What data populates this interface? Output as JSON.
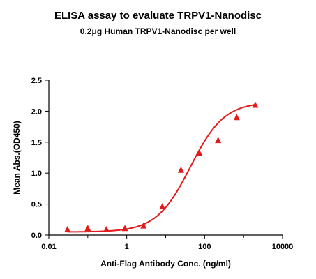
{
  "chart_data": {
    "type": "scatter",
    "title": "ELISA assay to evaluate TRPV1-Nanodisc",
    "subtitle": "0.2μg Human TRPV1-Nanodisc per well",
    "xlabel": "Anti-Flag Antibody Conc. (ng/ml)",
    "ylabel": "Mean Abs.(OD450)",
    "x_scale": "log",
    "xlim": [
      0.01,
      10000
    ],
    "ylim": [
      0,
      2.5
    ],
    "x_ticks": [
      0.01,
      1,
      100,
      10000
    ],
    "x_tick_labels": [
      "0.01",
      "1",
      "100",
      "10000"
    ],
    "y_ticks": [
      0,
      0.5,
      1.0,
      1.5,
      2.0,
      2.5
    ],
    "y_tick_labels": [
      "0.0",
      "0.5",
      "1.0",
      "1.5",
      "2.0",
      "2.5"
    ],
    "grid": false,
    "legend": "none",
    "series": [
      {
        "marker": "triangle",
        "color": "#e31a1c",
        "x": [
          0.03,
          0.1,
          0.3,
          0.9,
          2.7,
          8.2,
          24.7,
          74.1,
          222,
          667,
          2000
        ],
        "y": [
          0.09,
          0.11,
          0.09,
          0.11,
          0.15,
          0.46,
          1.05,
          1.32,
          1.53,
          1.9,
          2.1
        ]
      }
    ],
    "fit_curve": {
      "type": "4PL",
      "color": "#e31a1c",
      "bottom": 0.05,
      "top": 2.15,
      "ec50": 43,
      "hill": 1.0
    }
  }
}
